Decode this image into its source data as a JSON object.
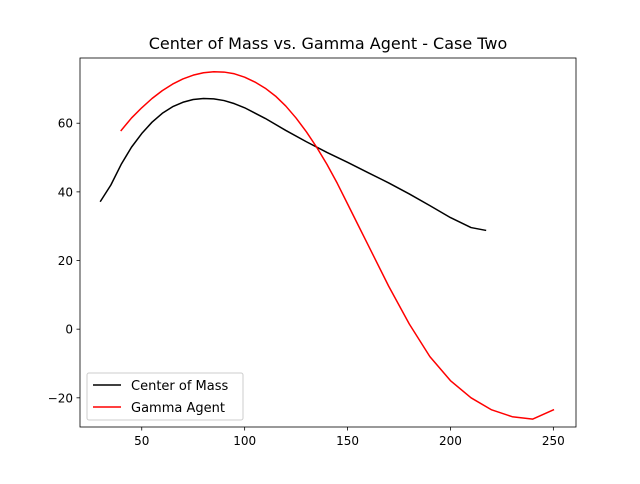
{
  "chart_data": {
    "type": "line",
    "title": "Center of Mass vs. Gamma Agent - Case Two",
    "xlabel": "",
    "ylabel": "",
    "xlim": [
      20.0,
      261.0
    ],
    "ylim": [
      -28.5,
      79.0
    ],
    "xticks": [
      50,
      100,
      150,
      200,
      250
    ],
    "yticks": [
      -20,
      0,
      20,
      40,
      60
    ],
    "xtick_labels": [
      "50",
      "100",
      "150",
      "200",
      "250"
    ],
    "ytick_labels": [
      "−20",
      "0",
      "20",
      "40",
      "60"
    ],
    "grid": false,
    "legend_position": "lower-left",
    "series": [
      {
        "name": "Center of Mass",
        "color": "#000000",
        "x": [
          30,
          35,
          40,
          45,
          50,
          55,
          60,
          65,
          70,
          75,
          80,
          85,
          90,
          95,
          100,
          110,
          120,
          130,
          140,
          150,
          160,
          170,
          180,
          190,
          200,
          210,
          217
        ],
        "y": [
          37.3,
          42.0,
          48.0,
          53.0,
          57.0,
          60.3,
          62.9,
          64.8,
          66.1,
          66.9,
          67.2,
          67.1,
          66.6,
          65.7,
          64.5,
          61.4,
          57.9,
          54.6,
          51.5,
          48.6,
          45.6,
          42.6,
          39.4,
          36.0,
          32.5,
          29.6,
          28.8
        ]
      },
      {
        "name": "Gamma Agent",
        "color": "#ff0000",
        "x": [
          40,
          45,
          50,
          55,
          60,
          65,
          70,
          75,
          80,
          85,
          90,
          95,
          100,
          105,
          110,
          115,
          120,
          125,
          130,
          135,
          140,
          145,
          150,
          155,
          160,
          170,
          180,
          190,
          200,
          210,
          220,
          230,
          240,
          250
        ],
        "y": [
          57.9,
          61.5,
          64.5,
          67.2,
          69.5,
          71.4,
          72.9,
          74.0,
          74.7,
          75.0,
          74.9,
          74.4,
          73.4,
          72.0,
          70.2,
          67.9,
          65.0,
          61.5,
          57.5,
          53.0,
          48.0,
          42.5,
          36.5,
          30.5,
          24.5,
          12.5,
          1.5,
          -8.0,
          -15.0,
          -20.0,
          -23.5,
          -25.5,
          -26.2,
          -23.5
        ]
      }
    ]
  }
}
